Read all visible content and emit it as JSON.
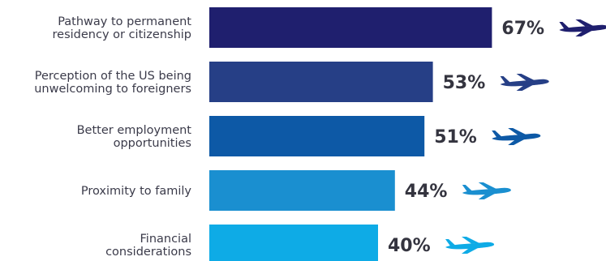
{
  "chart_data": {
    "type": "bar",
    "orientation": "horizontal",
    "title": "",
    "xlabel": "",
    "ylabel": "",
    "xlim": [
      0,
      100
    ],
    "grid": false,
    "legend": "none",
    "value_suffix": "%",
    "categories": [
      [
        "Pathway to permanent",
        "residency or citizenship"
      ],
      [
        "Perception of the US being",
        "unwelcoming to foreigners"
      ],
      [
        "Better employment",
        "opportunities"
      ],
      [
        "Proximity to family"
      ],
      [
        "Financial",
        "considerations"
      ]
    ],
    "values": [
      67,
      53,
      51,
      44,
      40
    ],
    "value_labels": [
      "67%",
      "53%",
      "51%",
      "44%",
      "40%"
    ],
    "colors": [
      "#1f1f6e",
      "#263f86",
      "#0d59a6",
      "#1a8fd0",
      "#0eabe6"
    ],
    "marker_icon": "airplane-icon"
  }
}
